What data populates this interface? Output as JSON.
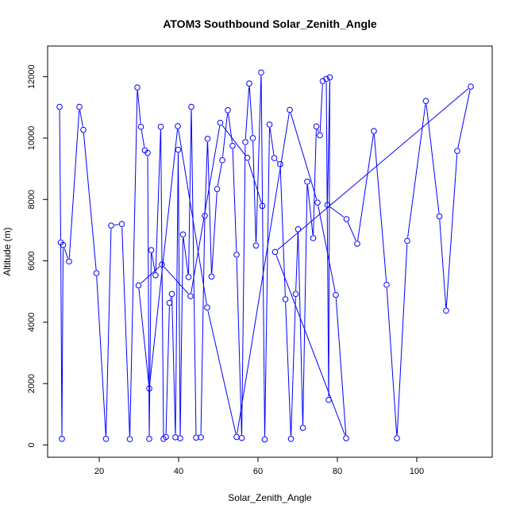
{
  "chart_data": {
    "type": "line",
    "title": "ATOM3 Southbound Solar_Zenith_Angle",
    "xlabel": "Solar_Zenith_Angle",
    "ylabel": "Altitude (m)",
    "xlim": [
      7,
      119
    ],
    "ylim": [
      -400,
      13000
    ],
    "xticks": [
      20,
      40,
      60,
      80,
      100
    ],
    "yticks": [
      0,
      2000,
      4000,
      6000,
      8000,
      10000,
      12000
    ],
    "grid": false,
    "color": "#0000ff",
    "marker": "open-circle",
    "series": [
      {
        "name": "",
        "x": [
          10.0,
          10.3,
          10.6,
          10.9,
          12.4,
          15.0,
          16.0,
          19.3,
          21.7,
          23.0,
          25.7,
          27.7,
          29.6,
          30.5,
          31.5,
          32.2,
          32.6,
          33.1,
          34.2,
          35.5,
          36.2,
          36.8,
          37.7,
          38.3,
          39.2,
          39.9,
          40.4,
          41.1,
          42.5,
          43.2,
          44.4,
          45.6,
          46.6,
          47.3,
          48.3,
          49.7,
          51.0,
          52.4,
          53.6,
          54.6,
          55.9,
          56.8,
          57.8,
          58.7,
          59.5,
          60.8,
          61.7,
          62.9,
          64.1,
          65.6,
          66.9,
          68.3,
          69.5,
          70.1,
          71.3,
          72.4,
          73.9,
          74.7,
          75.6,
          76.3,
          77.2,
          77.8,
          78.1,
          77.5,
          82.3,
          85.0,
          89.2,
          92.4,
          95.0,
          97.6,
          102.3,
          105.7,
          107.4,
          110.2,
          113.6,
          64.3,
          82.2,
          79.6,
          75.0,
          68.0,
          54.6,
          47.2,
          39.8,
          32.6,
          29.9,
          35.8,
          43.0,
          50.5,
          57.3,
          61.1
        ],
        "y": [
          11020,
          6600,
          200,
          6520,
          5980,
          11020,
          10270,
          5600,
          200,
          7150,
          7200,
          190,
          11650,
          10370,
          9600,
          9520,
          200,
          6350,
          5530,
          10370,
          200,
          260,
          4630,
          4920,
          250,
          9620,
          220,
          6860,
          5470,
          11020,
          240,
          250,
          7470,
          9980,
          5490,
          8340,
          9280,
          10910,
          9750,
          6200,
          230,
          9870,
          11780,
          10000,
          6500,
          12140,
          180,
          10440,
          9350,
          9150,
          4750,
          200,
          4920,
          7030,
          560,
          8580,
          6740,
          10380,
          10090,
          11860,
          11930,
          1470,
          11980,
          7820,
          7360,
          6560,
          10230,
          5220,
          220,
          6650,
          11210,
          7450,
          4380,
          9580,
          11680,
          6290,
          220,
          4890,
          7900,
          10920,
          260,
          4480,
          10390,
          1840,
          5200,
          5880,
          4850,
          10500,
          9360,
          7790
        ]
      }
    ]
  }
}
